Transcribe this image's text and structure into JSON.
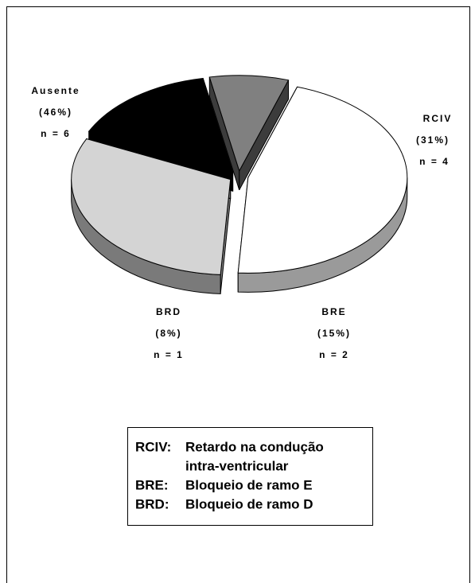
{
  "chart_data": {
    "type": "pie",
    "categories": [
      "Ausente",
      "RCIV",
      "BRE",
      "BRD"
    ],
    "values": [
      46,
      31,
      15,
      8
    ],
    "value_labels": [
      "(46%)",
      "(31%)",
      "(15%)",
      "(8%)"
    ],
    "count_labels": [
      "n = 6",
      "n = 4",
      "n = 2",
      "n = 1"
    ],
    "colors": [
      "#ffffff",
      "#d4d4d4",
      "#000000",
      "#808080"
    ],
    "side_colors": [
      "#9a9a9a",
      "#7a7a7a",
      "#000000",
      "#3c3c3c"
    ],
    "legend_box": [
      {
        "abbr": "RCIV:",
        "text": [
          "Retardo na condução",
          "intra-ventricular"
        ]
      },
      {
        "abbr": "BRE:",
        "text": [
          "Bloqueio de ramo E"
        ]
      },
      {
        "abbr": "BRD:",
        "text": [
          "Bloqueio de ramo D"
        ]
      }
    ]
  }
}
